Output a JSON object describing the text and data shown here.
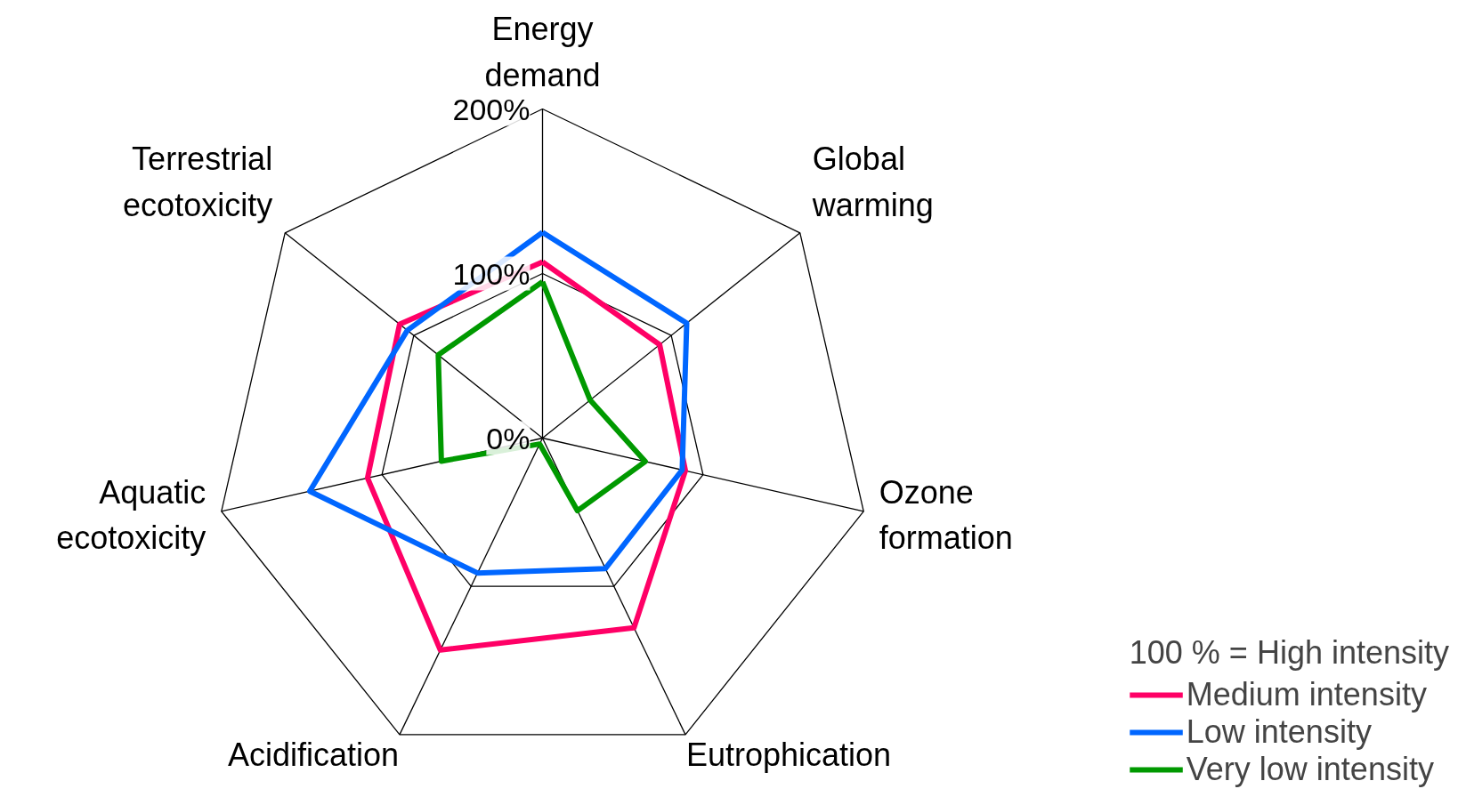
{
  "chart_data": {
    "type": "radar",
    "categories": [
      "Energy demand",
      "Global warming",
      "Ozone formation",
      "Eutrophication",
      "Acidification",
      "Aquatic ecotoxicity",
      "Terrestrial ecotoxicity"
    ],
    "series": [
      {
        "name": "Medium intensity",
        "color": "#ff0066",
        "values": [
          107,
          91,
          89,
          128,
          143,
          109,
          111
        ]
      },
      {
        "name": "Low intensity",
        "color": "#0066ff",
        "values": [
          125,
          112,
          87,
          88,
          91,
          145,
          105
        ]
      },
      {
        "name": "Very low intensity",
        "color": "#009900",
        "values": [
          95,
          37,
          64,
          49,
          4,
          63,
          81
        ]
      }
    ],
    "ylim": [
      0,
      200
    ],
    "yticks": [
      {
        "value": 0,
        "label": "0%"
      },
      {
        "value": 100,
        "label": "100%"
      },
      {
        "value": 200,
        "label": "200%"
      }
    ],
    "legend_title": "100 % = High intensity",
    "legend": "bottom right",
    "grid": true,
    "marker": "none",
    "line_style": "solid"
  }
}
